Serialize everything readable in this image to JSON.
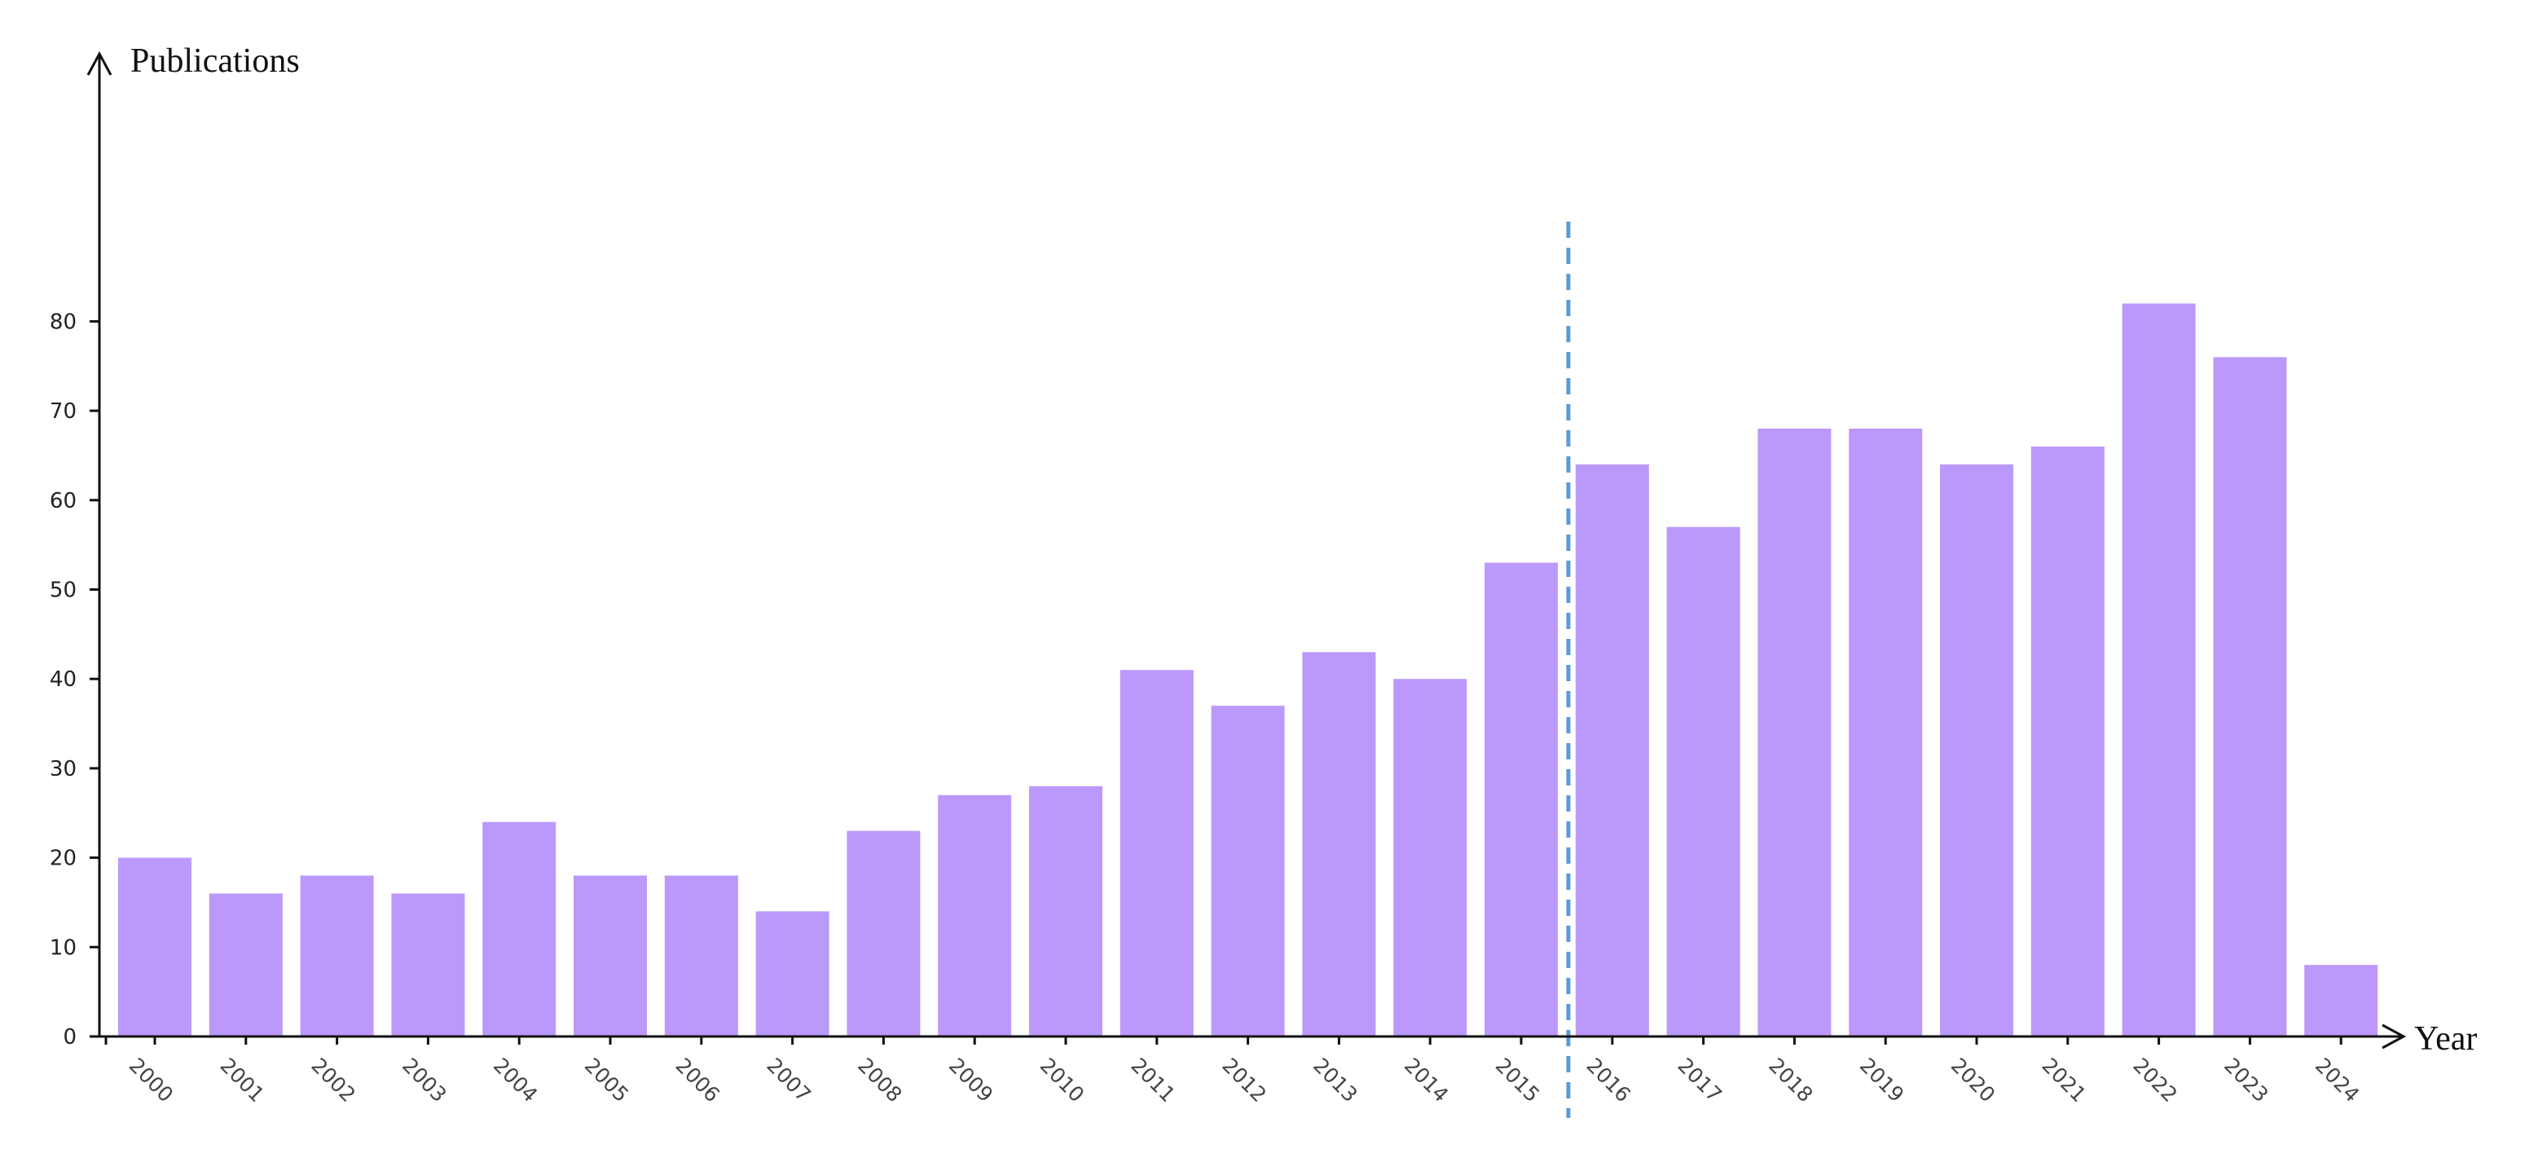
{
  "chart_data": {
    "type": "bar",
    "categories": [
      "2000",
      "2001",
      "2002",
      "2003",
      "2004",
      "2005",
      "2006",
      "2007",
      "2008",
      "2009",
      "2010",
      "2011",
      "2012",
      "2013",
      "2014",
      "2015",
      "2016",
      "2017",
      "2018",
      "2019",
      "2020",
      "2021",
      "2022",
      "2023",
      "2024"
    ],
    "values": [
      20,
      16,
      18,
      16,
      24,
      18,
      18,
      14,
      23,
      27,
      28,
      41,
      37,
      43,
      40,
      53,
      64,
      57,
      68,
      68,
      64,
      66,
      82,
      76,
      8
    ],
    "xlabel": "Year",
    "ylabel": "Publications",
    "ylim": [
      0,
      85
    ],
    "yticks": [
      0,
      10,
      20,
      30,
      40,
      50,
      60,
      70,
      80
    ],
    "grid": false,
    "bar_color": "#bb99fb",
    "reference_line": {
      "style": "dashed",
      "color": "#5b9bd5",
      "between": [
        "2015",
        "2016"
      ]
    }
  }
}
